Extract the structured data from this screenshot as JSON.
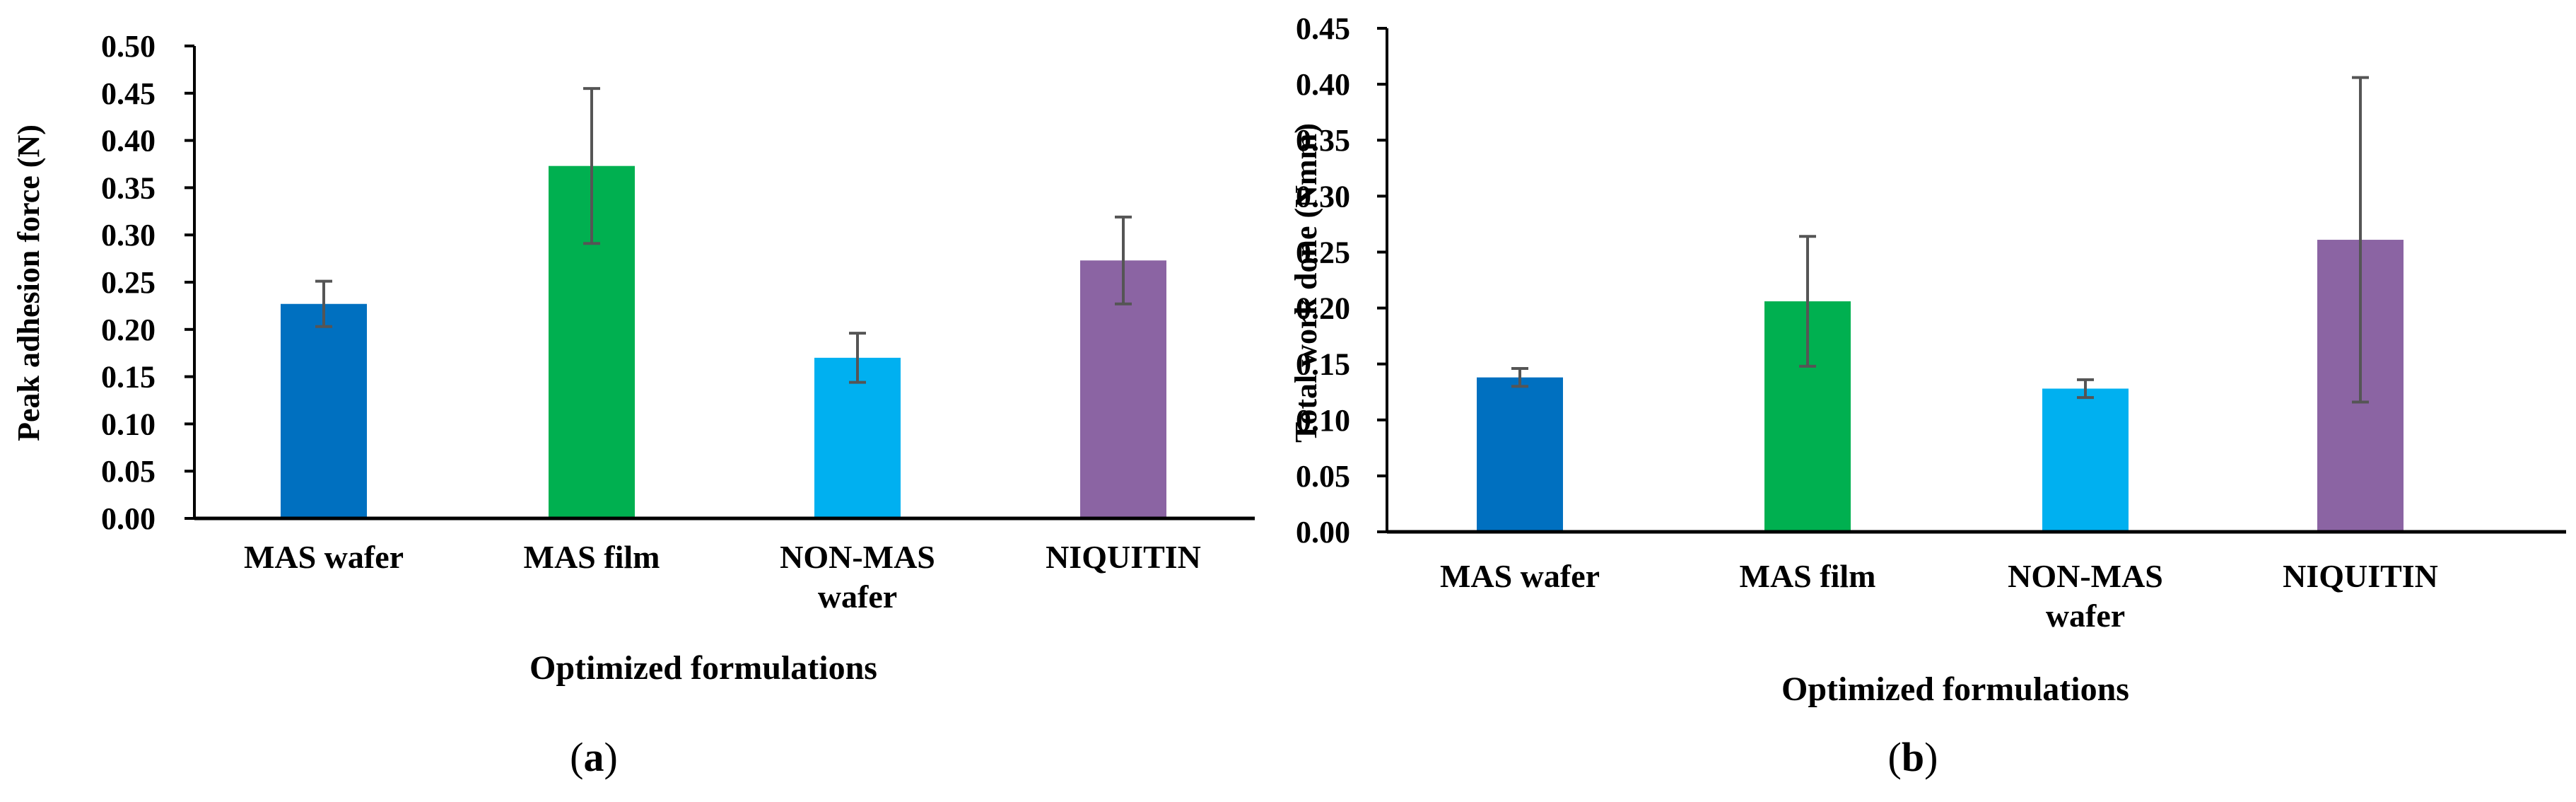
{
  "chart_data": [
    {
      "type": "bar",
      "panel_label": "(a)",
      "panel_letter": "a",
      "categories": [
        "MAS wafer",
        "MAS film",
        "NON-MAS wafer",
        "NIQUITIN"
      ],
      "category_lines": [
        [
          "MAS wafer"
        ],
        [
          "MAS film"
        ],
        [
          "NON-MAS",
          "wafer"
        ],
        [
          "NIQUITIN"
        ]
      ],
      "values": [
        0.227,
        0.373,
        0.17,
        0.273
      ],
      "errors": [
        0.024,
        0.082,
        0.026,
        0.046
      ],
      "colors": [
        "#0070C0",
        "#00B050",
        "#00B0F0",
        "#8B64A3"
      ],
      "xlabel": "Optimized formulations",
      "ylabel": "Peak adhesion force (N)",
      "ylim": [
        0,
        0.5
      ],
      "yticks": [
        "0.00",
        "0.05",
        "0.10",
        "0.15",
        "0.20",
        "0.25",
        "0.30",
        "0.35",
        "0.40",
        "0.45",
        "0.50"
      ],
      "grid": false
    },
    {
      "type": "bar",
      "panel_label": "(b)",
      "panel_letter": "b",
      "categories": [
        "MAS wafer",
        "MAS film",
        "NON-MAS wafer",
        "NIQUITIN"
      ],
      "category_lines": [
        [
          "MAS wafer"
        ],
        [
          "MAS film"
        ],
        [
          "NON-MAS",
          "wafer"
        ],
        [
          "NIQUITIN"
        ]
      ],
      "values": [
        0.138,
        0.206,
        0.128,
        0.261
      ],
      "errors": [
        0.008,
        0.058,
        0.008,
        0.145
      ],
      "colors": [
        "#0070C0",
        "#00B050",
        "#00B0F0",
        "#8B64A3"
      ],
      "xlabel": "Optimized formulations",
      "ylabel": "Total work done (Nmm)",
      "ylim": [
        0,
        0.45
      ],
      "yticks": [
        "0.00",
        "0.05",
        "0.10",
        "0.15",
        "0.20",
        "0.25",
        "0.30",
        "0.35",
        "0.40",
        "0.45"
      ],
      "grid": false
    }
  ]
}
